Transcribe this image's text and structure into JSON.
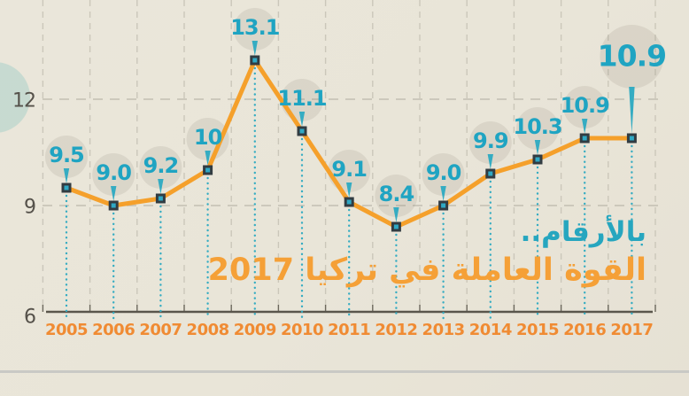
{
  "title": {
    "line1": "بالأرقام..",
    "line2": "القوة العاملة في تركيا 2017"
  },
  "colors": {
    "background": "#E9E5D8",
    "line": "#F5A02B",
    "data_label": "#1FA4C2",
    "year_label": "#F08B33",
    "axis": "#5A564C",
    "grid": "#CBC7BA",
    "marker_outer": "#323C42",
    "marker_inner": "#2FA8C4",
    "dotted_guide": "#35ACC2",
    "label_halo": "rgba(125,120,105,0.14)",
    "y_label": "#55514A"
  },
  "chart_data": {
    "type": "line",
    "title": "بالأرقام.. القوة العاملة في تركيا 2017",
    "title_translation": "In numbers.. the labor force in Turkey 2017",
    "categories": [
      "2005",
      "2006",
      "2007",
      "2008",
      "2009",
      "2010",
      "2011",
      "2012",
      "2013",
      "2014",
      "2015",
      "2016",
      "2017"
    ],
    "values": [
      9.5,
      9.0,
      9.2,
      10,
      13.1,
      11.1,
      9.1,
      8.4,
      9.0,
      9.9,
      10.3,
      10.9,
      10.9
    ],
    "labels": [
      "9.5",
      "9.0",
      "9.2",
      "10",
      "13.1",
      "11.1",
      "9.1",
      "8.4",
      "9.0",
      "9.9",
      "10.3",
      "10.9",
      "10.9"
    ],
    "xlabel": "",
    "ylabel": "",
    "yticks": [
      6,
      9,
      12
    ],
    "ytick_labels": [
      "6",
      "9",
      "12"
    ],
    "ylim": [
      6,
      14.8
    ],
    "grid": true,
    "legend": false,
    "highlight_last_point": true
  }
}
